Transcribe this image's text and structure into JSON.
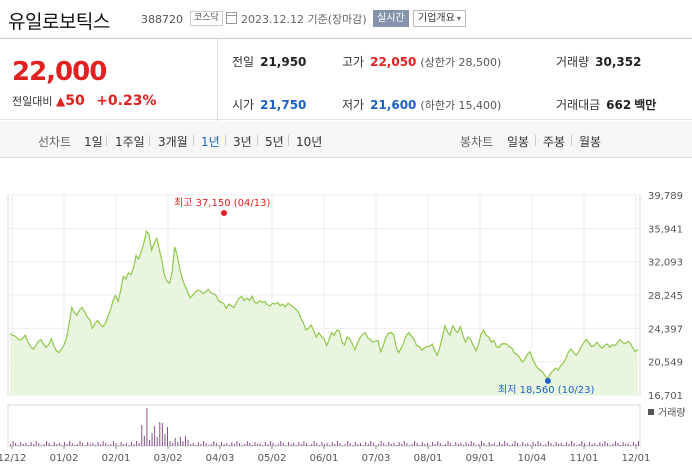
{
  "header": {
    "name": "유일로보틱스",
    "code": "388720",
    "market": "코스닥",
    "date": "2023.12.12 기준(장마감)",
    "realtime": "실시간",
    "company_info": "기업개요"
  },
  "summary": {
    "price": "22,000",
    "change_label": "전일대비",
    "change_arrow": "▲",
    "change": "50",
    "change_pct": "+0.23%",
    "prev_close_label": "전일",
    "prev_close": "21,950",
    "high_label": "고가",
    "high": "22,050",
    "upper_limit": "(상한가 28,500)",
    "volume_label": "거래량",
    "volume": "30,352",
    "open_label": "시가",
    "open": "21,750",
    "low_label": "저가",
    "low": "21,600",
    "lower_limit": "(하한가 15,400)",
    "value_label": "거래대금",
    "value": "662",
    "value_unit": "백만"
  },
  "tabs": {
    "line_label": "선차트",
    "line": [
      "1일",
      "1주일",
      "3개월",
      "1년",
      "3년",
      "5년",
      "10년"
    ],
    "selected": "1년",
    "candle_label": "봉차트",
    "candle": [
      "일봉",
      "주봉",
      "월봉"
    ]
  },
  "chart_data": {
    "type": "area",
    "y_ticks": [
      "39,789",
      "35,941",
      "32,093",
      "28,245",
      "24,397",
      "20,549",
      "16,701"
    ],
    "ylim": [
      16701,
      39789
    ],
    "x_ticks": [
      "12/12",
      "01/02",
      "02/01",
      "03/02",
      "04/03",
      "05/02",
      "06/01",
      "07/03",
      "08/01",
      "09/01",
      "10/04",
      "11/01",
      "12/01"
    ],
    "high_label": "최고 37,150 (04/13)",
    "high_value": 37150,
    "low_label": "최저 18,560 (10/23)",
    "low_value": 18560,
    "volume_label": "거래량",
    "series": [
      {
        "values": [
          23800,
          23600,
          23500,
          23200,
          23000,
          23300,
          23600,
          22800,
          22300,
          22000,
          22400,
          22900,
          23100,
          22600,
          22200,
          22500,
          23200,
          22400,
          21800,
          21600,
          22000,
          22500,
          23300,
          25000,
          26800,
          26200,
          25900,
          26500,
          26800,
          26300,
          25700,
          25400,
          24400,
          24900,
          25300,
          24900,
          24600,
          24900,
          25700,
          26500,
          27600,
          28200,
          27500,
          28800,
          30400,
          30100,
          30800,
          30600,
          31400,
          32800,
          32400,
          33300,
          34200,
          35600,
          35200,
          33400,
          34200,
          34800,
          33500,
          32200,
          30600,
          29800,
          29600,
          30900,
          33800,
          32800,
          31200,
          30100,
          29300,
          28600,
          27900,
          28200,
          28600,
          28800,
          28700,
          28400,
          28600,
          28900,
          28500,
          28400,
          28200,
          27600,
          27400,
          27300,
          26700,
          27200,
          27000,
          26800,
          27400,
          27900,
          28100,
          27600,
          27900,
          27600,
          28100,
          27400,
          27300,
          27600,
          27400,
          27500,
          27100,
          27000,
          27300,
          27200,
          27400,
          27000,
          27200,
          26900,
          27300,
          27100,
          26900,
          26600,
          26300,
          25600,
          25000,
          24200,
          24400,
          24800,
          24100,
          23400,
          23900,
          23500,
          23200,
          22400,
          23100,
          23900,
          23600,
          24200,
          24100,
          22800,
          22500,
          23400,
          23200,
          22600,
          21900,
          22700,
          23300,
          23700,
          23900,
          23300,
          23100,
          22800,
          22900,
          23000,
          21700,
          22400,
          23300,
          23800,
          23900,
          23700,
          22300,
          21600,
          22100,
          22800,
          23600,
          23900,
          23500,
          23100,
          22400,
          22300,
          21900,
          22100,
          22300,
          22300,
          22600,
          21800,
          21300,
          22200,
          23400,
          24700,
          24000,
          23600,
          24700,
          24200,
          23900,
          24600,
          23500,
          22800,
          23400,
          23100,
          22400,
          21800,
          22500,
          23700,
          24200,
          23600,
          23400,
          22800,
          23000,
          22300,
          22200,
          22600,
          22600,
          22600,
          22300,
          22100,
          21500,
          21400,
          21000,
          20500,
          20800,
          21400,
          21700,
          20900,
          20300,
          19800,
          19600,
          19300,
          18900,
          18600,
          19200,
          19500,
          19800,
          19600,
          20100,
          20400,
          20900,
          21700,
          22000,
          21600,
          21300,
          21700,
          22300,
          22800,
          23100,
          22700,
          22300,
          22400,
          22800,
          22400,
          22100,
          22400,
          22600,
          22200,
          22500,
          22400,
          22700,
          23100,
          22800,
          22600,
          22900,
          22700,
          22100,
          21700,
          22000
        ]
      }
    ]
  },
  "colors": {
    "up": "#e12020",
    "down": "#1b62c8",
    "line": "#8fc74a",
    "area": "#eaf5df"
  }
}
